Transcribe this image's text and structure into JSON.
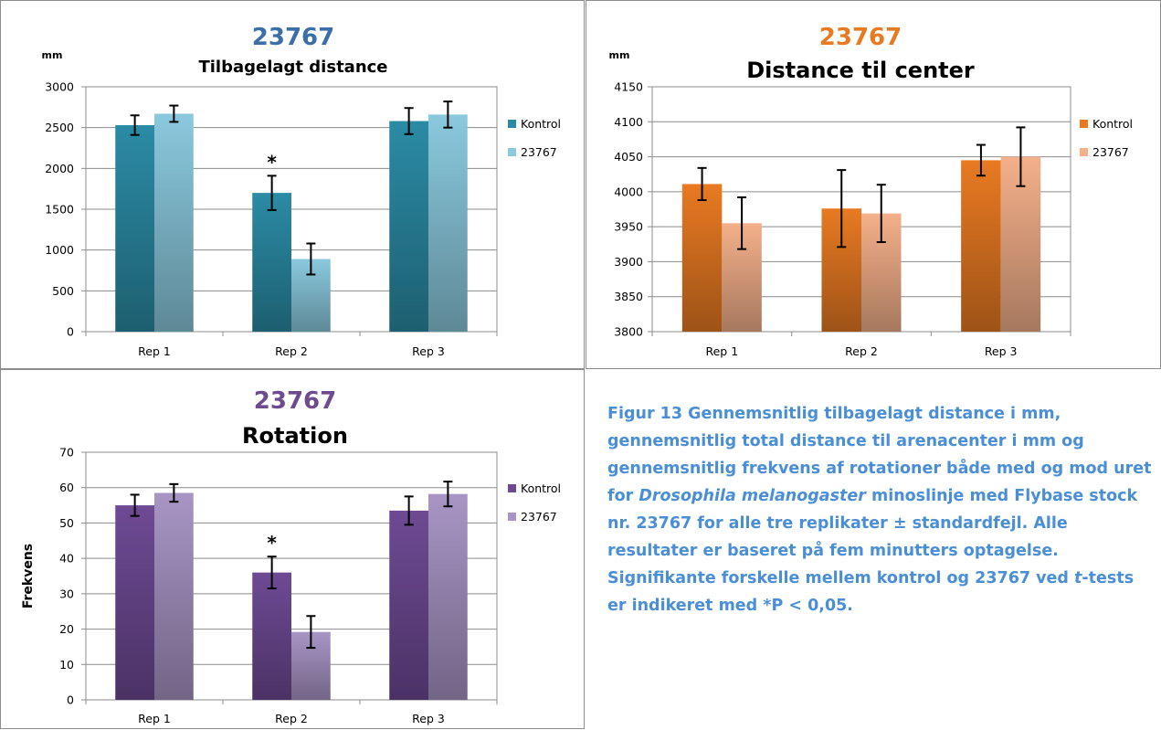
{
  "caption": {
    "fig_label": "Figur 13",
    "part1": "Gennemsnitlig tilbagelagt distance i mm, gennemsnitlig total distance til arenacenter i mm og gennemsnitlig frekvens af rotationer både med og mod uret for ",
    "species": "Drosophila melanogaster",
    "part2": " minoslinje med Flybase stock nr. 23767 for alle tre replikater ± standardfejl. Alle resultater er baseret på fem minutters optagelse. Signifikante forskelle mellem kontrol og 23767 ved ",
    "t": "t",
    "part3": "-tests er indikeret med *P < 0,05."
  },
  "chart_data": [
    {
      "type": "bar",
      "title": "23767",
      "subtitle": "Tilbagelagt distance",
      "unit_label": "mm",
      "ylabel": "",
      "categories": [
        "Rep 1",
        "Rep 2",
        "Rep 3"
      ],
      "ylim": [
        0,
        3000
      ],
      "yticks": [
        0,
        500,
        1000,
        1500,
        2000,
        2500,
        3000
      ],
      "grid": true,
      "legend": "right",
      "colors": {
        "title": "#3b6fa5",
        "Kontrol": "#2b8ba5",
        "23767": "#8ac9de"
      },
      "series": [
        {
          "name": "Kontrol",
          "values": [
            2530,
            1700,
            2580
          ],
          "errors": [
            120,
            210,
            160
          ]
        },
        {
          "name": "23767",
          "values": [
            2670,
            890,
            2660
          ],
          "errors": [
            100,
            190,
            160
          ]
        }
      ],
      "annotations": [
        {
          "text": "*",
          "category": "Rep 2"
        }
      ]
    },
    {
      "type": "bar",
      "title": "23767",
      "subtitle": "Distance til center",
      "unit_label": "mm",
      "ylabel": "",
      "categories": [
        "Rep 1",
        "Rep 2",
        "Rep 3"
      ],
      "ylim": [
        3800,
        4150
      ],
      "yticks": [
        3800,
        3850,
        3900,
        3950,
        4000,
        4050,
        4100,
        4150
      ],
      "grid": true,
      "legend": "right",
      "colors": {
        "title": "#e87a22",
        "Kontrol": "#e87a22",
        "23767": "#f4b08a"
      },
      "series": [
        {
          "name": "Kontrol",
          "values": [
            4011,
            3976,
            4045
          ],
          "errors": [
            23,
            55,
            22
          ]
        },
        {
          "name": "23767",
          "values": [
            3955,
            3969,
            4050
          ],
          "errors": [
            37,
            41,
            42
          ]
        }
      ],
      "annotations": []
    },
    {
      "type": "bar",
      "title": "23767",
      "subtitle": "Rotation",
      "unit_label": "",
      "ylabel": "Frekvens",
      "categories": [
        "Rep 1",
        "Rep 2",
        "Rep 3"
      ],
      "ylim": [
        0,
        70
      ],
      "yticks": [
        0,
        10,
        20,
        30,
        40,
        50,
        60,
        70
      ],
      "grid": true,
      "legend": "right",
      "colors": {
        "title": "#6e4a8e",
        "Kontrol": "#6e4a94",
        "23767": "#a895c5"
      },
      "series": [
        {
          "name": "Kontrol",
          "values": [
            55,
            36,
            53.5
          ],
          "errors": [
            3,
            4.5,
            4
          ]
        },
        {
          "name": "23767",
          "values": [
            58.5,
            19.2,
            58.2
          ],
          "errors": [
            2.5,
            4.5,
            3.5
          ]
        }
      ],
      "annotations": [
        {
          "text": "*",
          "category": "Rep 2"
        }
      ]
    }
  ]
}
